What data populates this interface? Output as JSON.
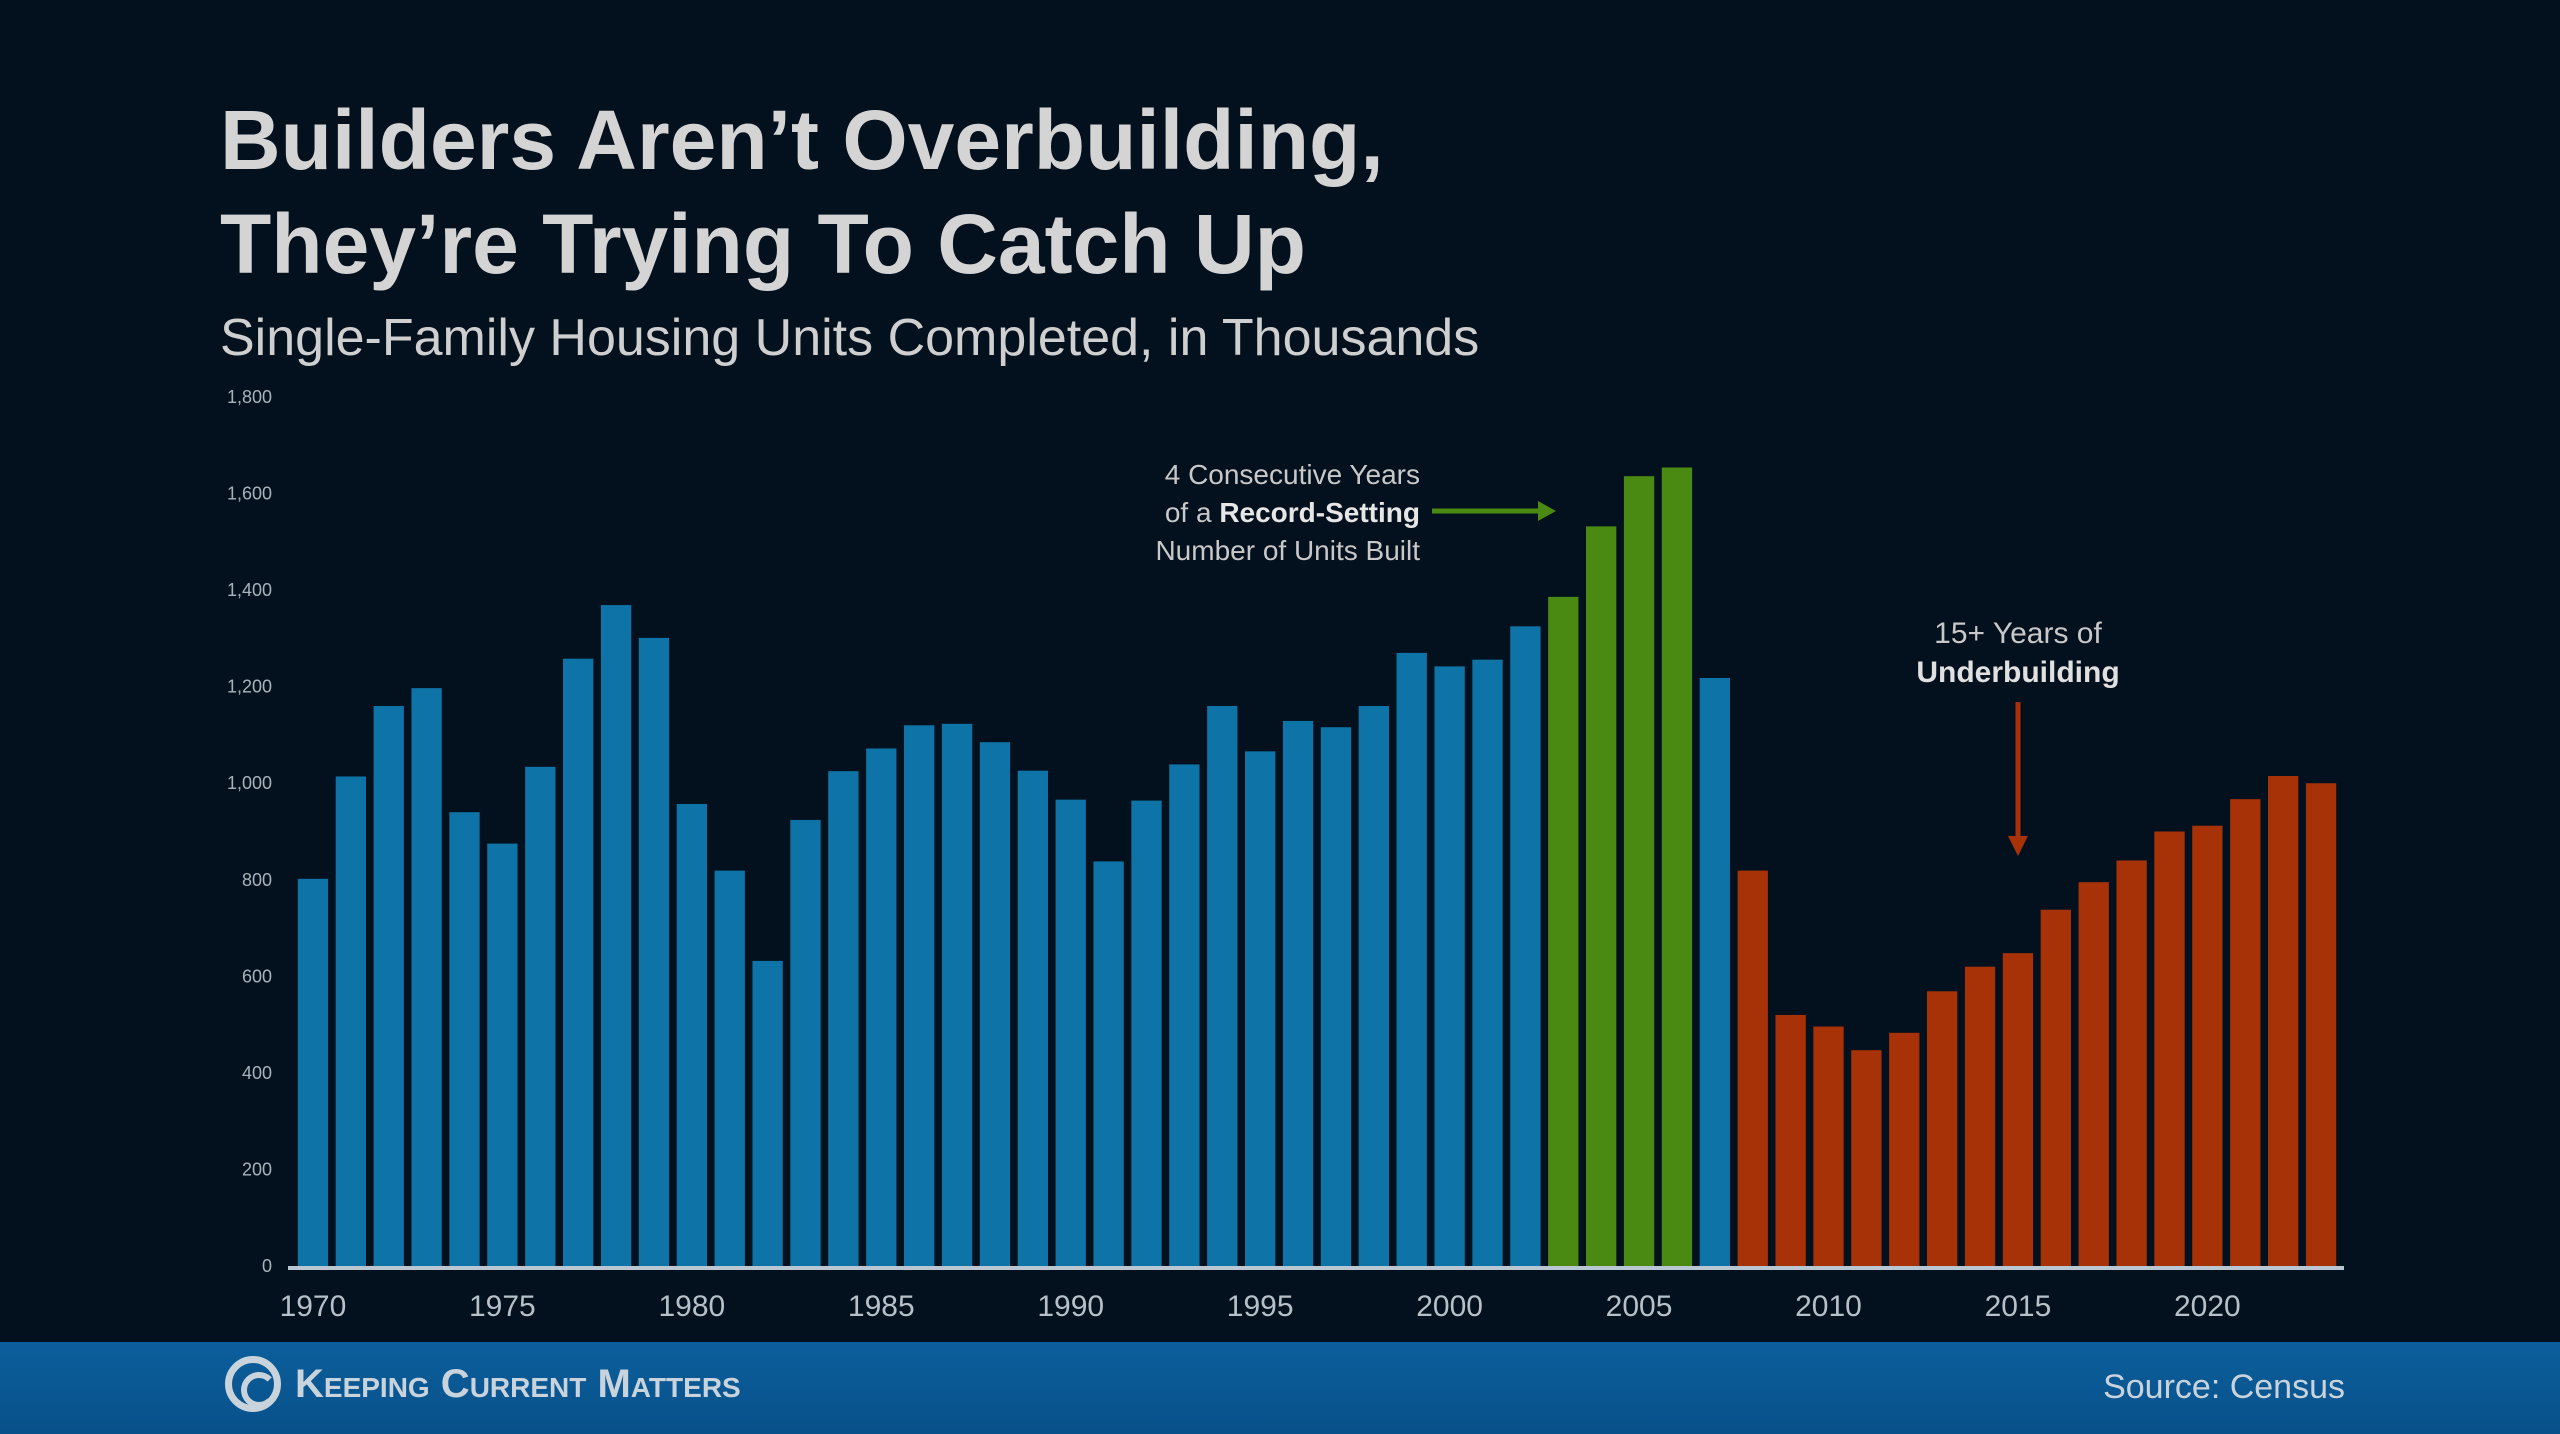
{
  "chart_data": {
    "type": "bar",
    "title": "Builders Aren’t Overbuilding, They’re Trying To Catch Up",
    "title_lines": [
      "Builders Aren’t Overbuilding,",
      "They’re Trying To Catch Up"
    ],
    "subtitle": "Single-Family Housing Units Completed, in Thousands",
    "xlabel": "",
    "ylabel": "",
    "ylim": [
      0,
      1800
    ],
    "yticks": [
      "0",
      "200",
      "400",
      "600",
      "800",
      "1,000",
      "1,200",
      "1,400",
      "1,600",
      "1,800"
    ],
    "xticks": [
      "1970",
      "1975",
      "1980",
      "1985",
      "1990",
      "1995",
      "2000",
      "2005",
      "2010",
      "2015",
      "2020"
    ],
    "grid": false,
    "categories": [
      1970,
      1971,
      1972,
      1973,
      1974,
      1975,
      1976,
      1977,
      1978,
      1979,
      1980,
      1981,
      1982,
      1983,
      1984,
      1985,
      1986,
      1987,
      1988,
      1989,
      1990,
      1991,
      1992,
      1993,
      1994,
      1995,
      1996,
      1997,
      1998,
      1999,
      2000,
      2001,
      2002,
      2003,
      2004,
      2005,
      2006,
      2007,
      2008,
      2009,
      2010,
      2011,
      2012,
      2013,
      2014,
      2015,
      2016,
      2017,
      2018,
      2019,
      2020,
      2021,
      2022,
      2023
    ],
    "values": [
      802,
      1014,
      1160,
      1197,
      940,
      875,
      1034,
      1258,
      1369,
      1301,
      957,
      819,
      632,
      924,
      1025,
      1072,
      1120,
      1123,
      1085,
      1026,
      966,
      838,
      964,
      1039,
      1160,
      1066,
      1129,
      1116,
      1160,
      1270,
      1242,
      1256,
      1325,
      1386,
      1532,
      1636,
      1654,
      1218,
      819,
      520,
      496,
      447,
      483,
      569,
      620,
      648,
      738,
      795,
      840,
      900,
      912,
      967,
      1015,
      1000
    ],
    "colors": {
      "normal": "#0e73a6",
      "record": "#4a8a12",
      "underbuilding": "#a83208"
    },
    "record_years": [
      2003,
      2004,
      2005,
      2006
    ],
    "underbuilding_from": 2008,
    "annotations": {
      "record": {
        "line1": "4 Consecutive Years",
        "line2_prefix": "of a ",
        "line2_bold": "Record-Setting",
        "line3": "Number of Units Built"
      },
      "under": {
        "line1": "15+ Years of",
        "line2": "Underbuilding"
      }
    }
  },
  "footer": {
    "brand": "Keeping Current Matters",
    "source": "Source: Census"
  }
}
